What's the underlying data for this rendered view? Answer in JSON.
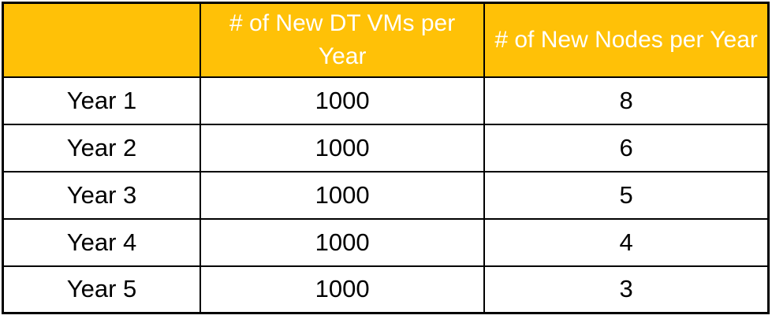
{
  "colors": {
    "header_bg": "#FFC107",
    "header_text": "#FFFFFF",
    "border": "#000000",
    "body_text": "#000000",
    "page_bg": "#FFFFFF"
  },
  "table": {
    "header": {
      "label_col": "",
      "vms_col": "# of New DT VMs per Year",
      "nodes_col": "# of New Nodes per Year"
    },
    "rows": [
      {
        "label": "Year 1",
        "vms": "1000",
        "nodes": "8"
      },
      {
        "label": "Year 2",
        "vms": "1000",
        "nodes": "6"
      },
      {
        "label": "Year 3",
        "vms": "1000",
        "nodes": "5"
      },
      {
        "label": "Year 4",
        "vms": "1000",
        "nodes": "4"
      },
      {
        "label": "Year 5",
        "vms": "1000",
        "nodes": "3"
      }
    ]
  },
  "chart_data": {
    "type": "table",
    "title": "",
    "columns": [
      "",
      "# of New DT VMs per Year",
      "# of New Nodes per Year"
    ],
    "categories": [
      "Year 1",
      "Year 2",
      "Year 3",
      "Year 4",
      "Year 5"
    ],
    "series": [
      {
        "name": "# of New DT VMs per Year",
        "values": [
          1000,
          1000,
          1000,
          1000,
          1000
        ]
      },
      {
        "name": "# of New Nodes per Year",
        "values": [
          8,
          6,
          5,
          4,
          3
        ]
      }
    ],
    "layout": {
      "header_fill": "#FFC107",
      "grid": "on",
      "text_align": "center"
    }
  }
}
